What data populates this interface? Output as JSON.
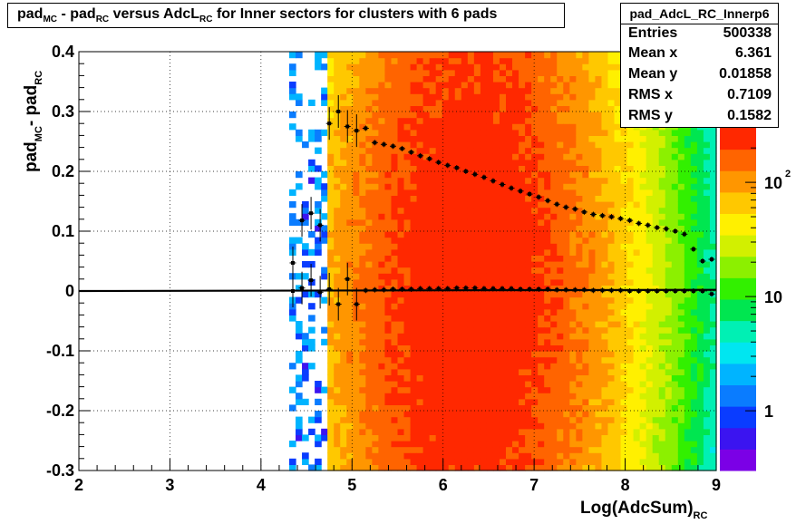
{
  "chart_data": {
    "type": "heatmap",
    "title": "pad_MC - pad_RC versus AdcL_RC for Inner sectors for clusters with 6 pads",
    "title_parts": {
      "a": "pad",
      "a_sub": "MC",
      "b": "- pad",
      "b_sub": "RC",
      "c": "versus AdcL",
      "c_sub": "RC",
      "d": "for Inner sectors for clusters with 6 pads"
    },
    "xlabel": "Log(AdcSum)",
    "xlabel_sub": "RC",
    "ylabel": "pad",
    "ylabel_sub1": "MC",
    "ylabel_mid": "- pad",
    "ylabel_sub2": "RC",
    "xlim": [
      2,
      9
    ],
    "ylim": [
      -0.3,
      0.4
    ],
    "x_ticks": [
      "2",
      "3",
      "4",
      "5",
      "6",
      "7",
      "8",
      "9"
    ],
    "y_ticks": [
      "-0.3",
      "-0.2",
      "-0.1",
      "0",
      "0.1",
      "0.2",
      "0.3",
      "0.4"
    ],
    "grid": true,
    "colorbar": {
      "labels": [
        "1",
        "10",
        "10"
      ],
      "exponent": "2",
      "log_scale": true,
      "range": [
        0.3,
        300
      ]
    },
    "z_colors": [
      "#7b00e6",
      "#3b14f0",
      "#0a3cff",
      "#0a7cff",
      "#00b4ff",
      "#00e6f0",
      "#00f0b4",
      "#00e650",
      "#32f000",
      "#8cf000",
      "#d2f000",
      "#fff000",
      "#ffc800",
      "#ff9600",
      "#ff6400",
      "#ff2800"
    ],
    "series": [
      {
        "type": "profile_upper",
        "x": [
          4.35,
          4.45,
          4.55,
          4.65,
          4.75,
          4.85,
          4.95,
          5.05,
          5.15,
          5.25,
          5.35,
          5.45,
          5.55,
          5.65,
          5.75,
          5.85,
          5.95,
          6.05,
          6.15,
          6.25,
          6.35,
          6.45,
          6.55,
          6.65,
          6.75,
          6.85,
          6.95,
          7.05,
          7.15,
          7.25,
          7.35,
          7.45,
          7.55,
          7.65,
          7.75,
          7.85,
          7.95,
          8.05,
          8.15,
          8.25,
          8.35,
          8.45,
          8.55,
          8.65,
          8.75,
          8.85,
          8.95
        ],
        "y": [
          0.047,
          0.118,
          0.13,
          0.11,
          0.28,
          0.3,
          0.275,
          0.268,
          0.272,
          0.248,
          0.245,
          0.242,
          0.238,
          0.232,
          0.226,
          0.221,
          0.215,
          0.21,
          0.206,
          0.2,
          0.195,
          0.19,
          0.184,
          0.178,
          0.172,
          0.167,
          0.162,
          0.157,
          0.151,
          0.145,
          0.14,
          0.137,
          0.132,
          0.128,
          0.126,
          0.124,
          0.121,
          0.118,
          0.113,
          0.11,
          0.106,
          0.104,
          0.1,
          0.095,
          0.07,
          0.05,
          0.053
        ]
      },
      {
        "type": "profile_mean",
        "x": [
          4.35,
          4.45,
          4.55,
          4.65,
          4.75,
          4.85,
          4.95,
          5.05,
          5.15,
          5.25,
          5.35,
          5.45,
          5.55,
          5.65,
          5.75,
          5.85,
          5.95,
          6.05,
          6.15,
          6.25,
          6.35,
          6.45,
          6.55,
          6.65,
          6.75,
          6.85,
          6.95,
          7.05,
          7.15,
          7.25,
          7.35,
          7.45,
          7.55,
          7.65,
          7.75,
          7.85,
          7.95,
          8.05,
          8.15,
          8.25,
          8.35,
          8.45,
          8.55,
          8.65,
          8.75,
          8.85,
          8.95
        ],
        "y": [
          0.0,
          0.005,
          0.018,
          -0.002,
          0.003,
          -0.022,
          0.02,
          -0.022,
          0.001,
          0.002,
          0.002,
          0.003,
          0.003,
          0.003,
          0.004,
          0.004,
          0.004,
          0.004,
          0.005,
          0.005,
          0.005,
          0.004,
          0.004,
          0.004,
          0.004,
          0.003,
          0.003,
          0.003,
          0.003,
          0.002,
          0.002,
          0.002,
          0.002,
          0.001,
          0.001,
          0.001,
          0.001,
          0.0,
          0.0,
          0.0,
          0.0,
          0.0,
          0.0,
          0.0,
          0.0,
          0.0,
          -0.005
        ]
      }
    ],
    "fit_line": {
      "x": [
        2,
        9
      ],
      "y": [
        0.0,
        0.002
      ]
    }
  },
  "stats_box": {
    "name": "pad_AdcL_RC_Innerp6",
    "entries_label": "Entries",
    "entries": "500338",
    "mean_x_label": "Mean x",
    "mean_x": "6.361",
    "mean_y_label": "Mean y",
    "mean_y": "0.01858",
    "rms_x_label": "RMS x",
    "rms_x": "0.7109",
    "rms_y_label": "RMS y",
    "rms_y": "0.1582"
  }
}
